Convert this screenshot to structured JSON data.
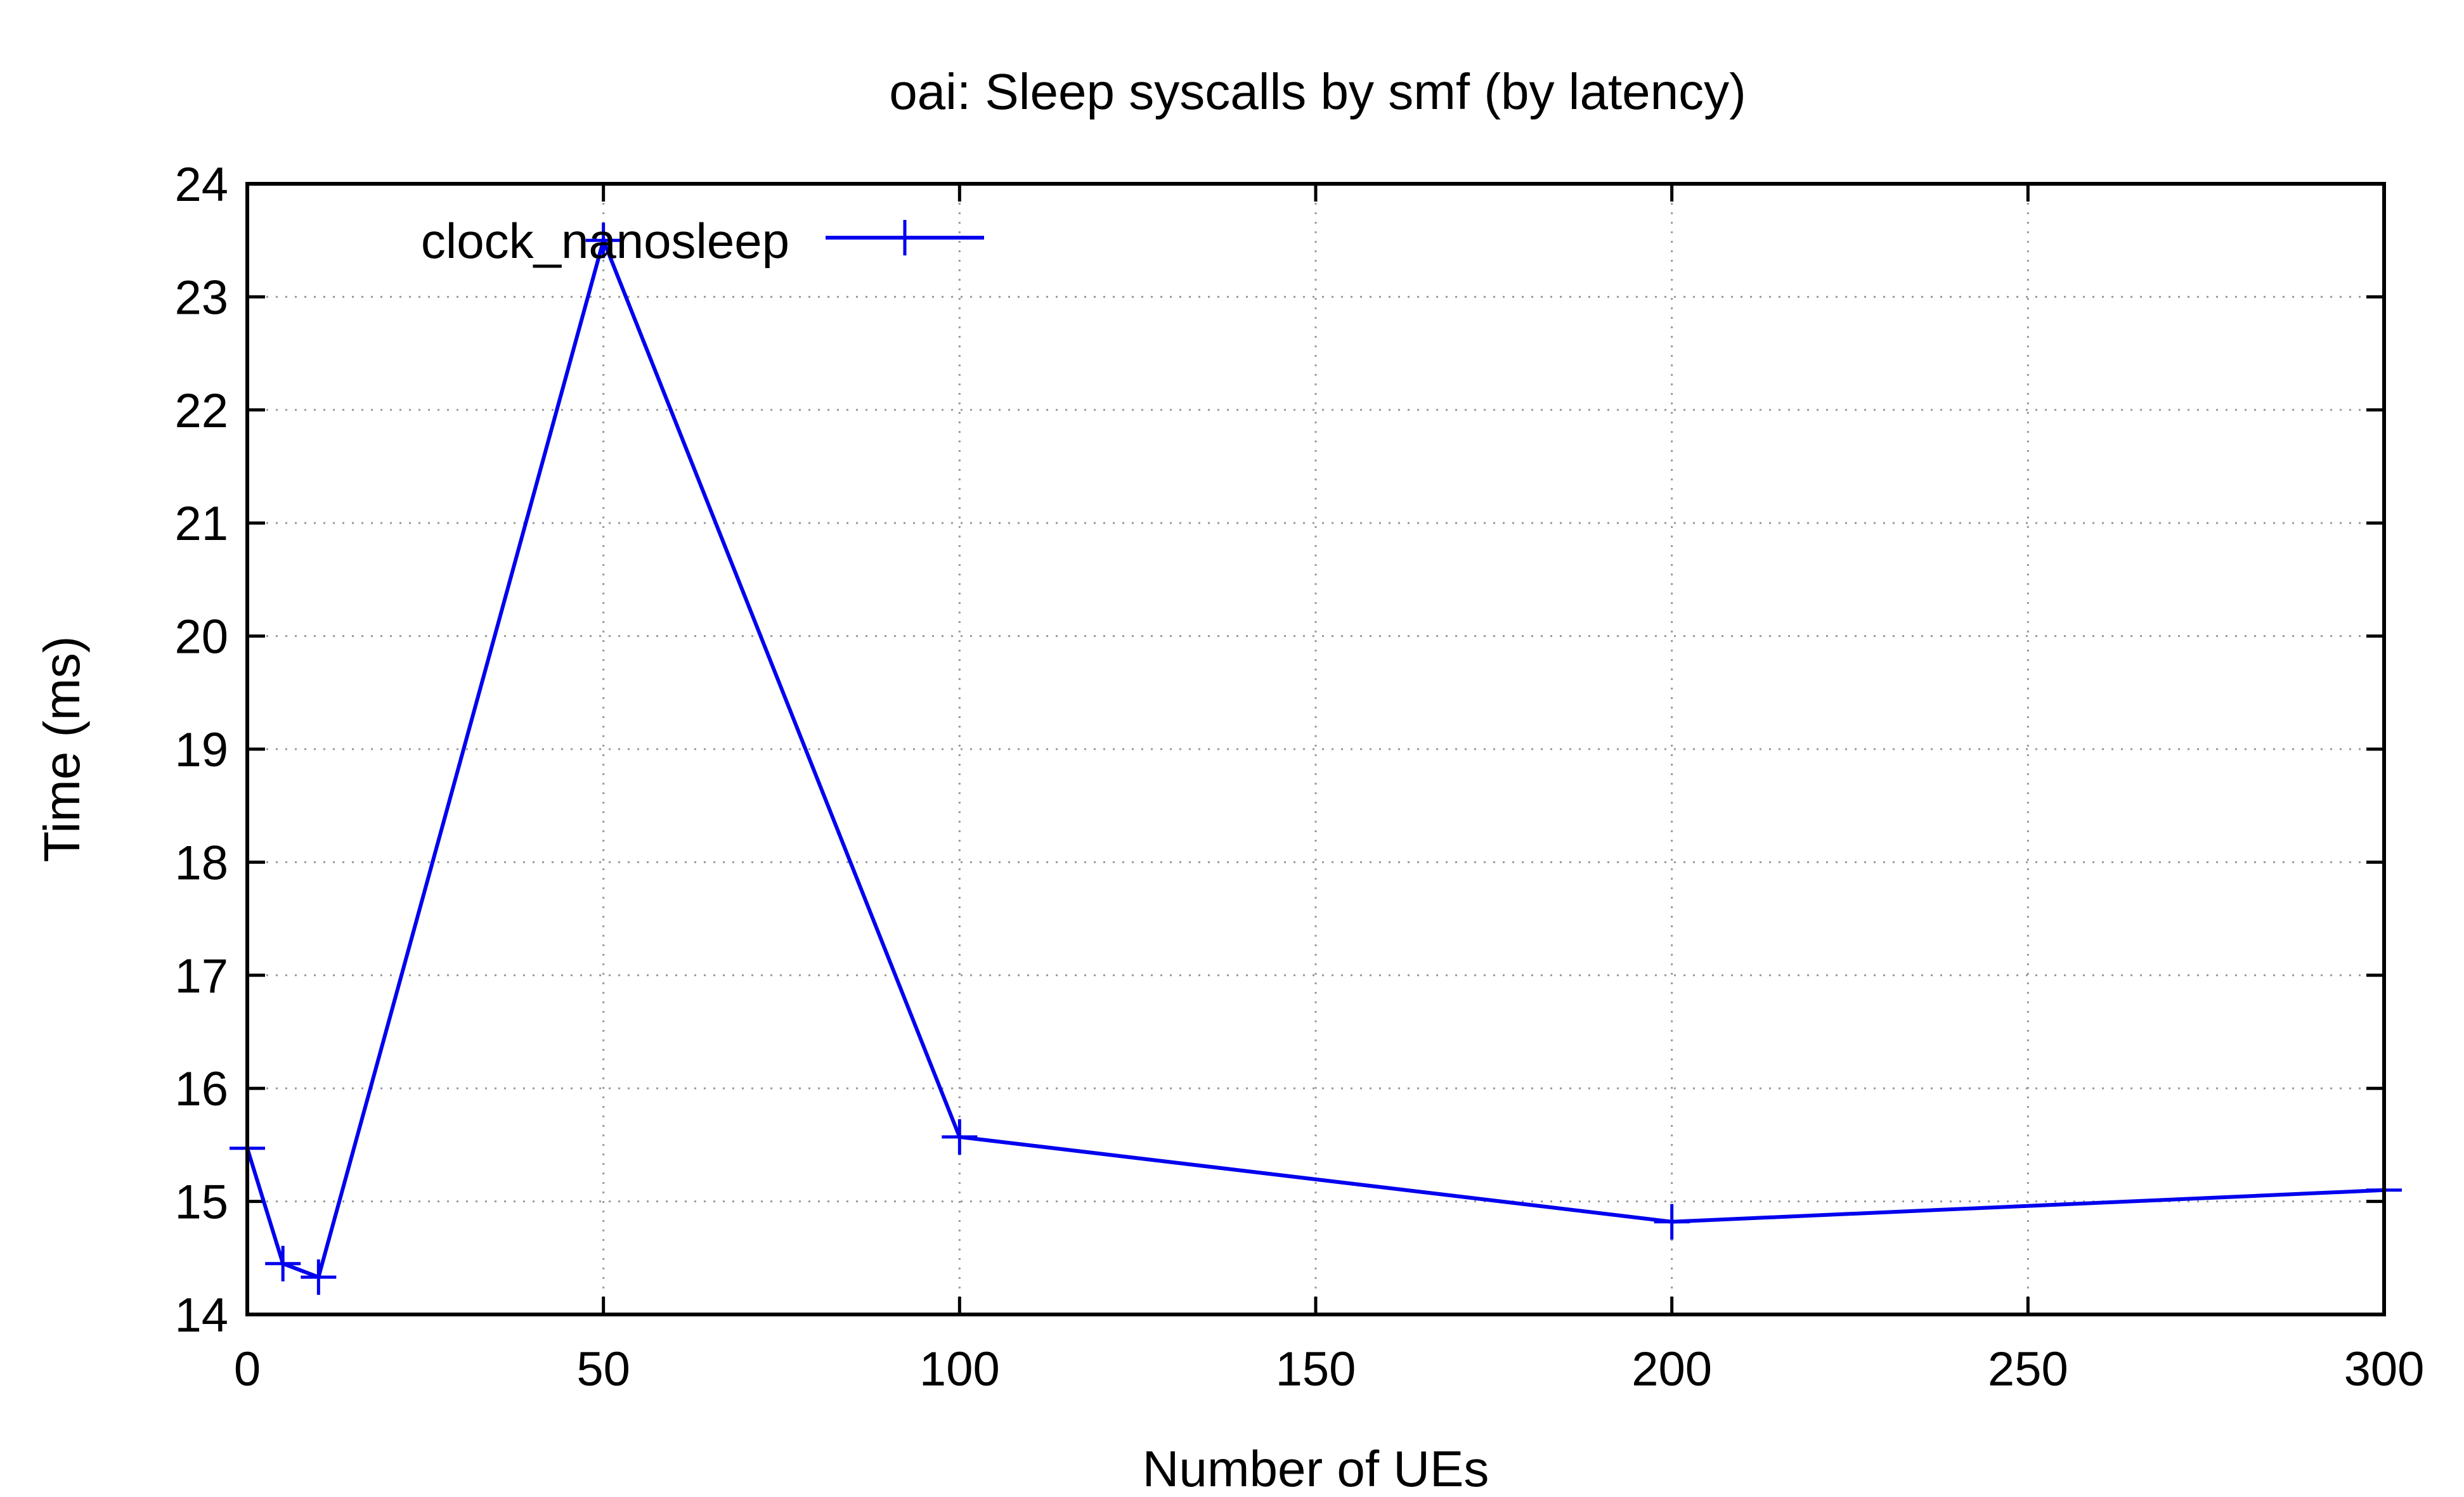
{
  "chart_data": {
    "type": "line",
    "title": "oai: Sleep syscalls by smf (by latency)",
    "xlabel": "Number of UEs",
    "ylabel": "Time (ms)",
    "xlim": [
      0,
      300
    ],
    "ylim": [
      14,
      24
    ],
    "xticks": [
      0,
      50,
      100,
      150,
      200,
      250,
      300
    ],
    "yticks": [
      14,
      15,
      16,
      17,
      18,
      19,
      20,
      21,
      22,
      23,
      24
    ],
    "grid": true,
    "legend_position": "top-left",
    "series": [
      {
        "name": "clock_nanosleep",
        "color": "#0000ee",
        "marker": "plus",
        "x": [
          0,
          5,
          10,
          50,
          100,
          200,
          300
        ],
        "y": [
          15.47,
          14.45,
          14.33,
          23.5,
          15.57,
          14.82,
          15.1
        ]
      }
    ]
  }
}
